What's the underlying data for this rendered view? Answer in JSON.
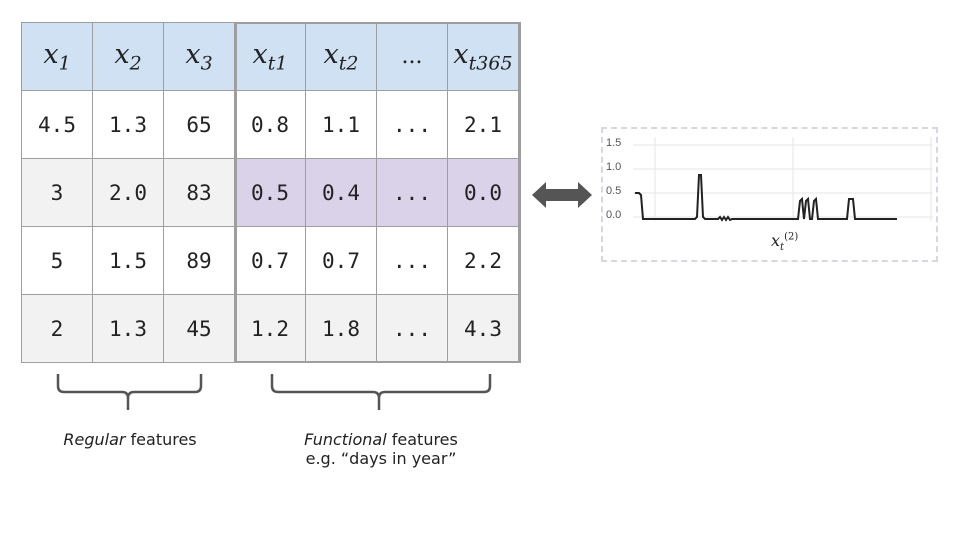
{
  "table": {
    "headers": [
      {
        "base": "x",
        "sub": "1"
      },
      {
        "base": "x",
        "sub": "2"
      },
      {
        "base": "x",
        "sub": "3"
      },
      {
        "base": "x",
        "sub": "t1"
      },
      {
        "base": "x",
        "sub": "t2"
      },
      {
        "base": "...",
        "sub": ""
      },
      {
        "base": "x",
        "sub": "t365"
      }
    ],
    "rows": [
      [
        "4.5",
        "1.3",
        "65",
        "0.8",
        "1.1",
        "...",
        "2.1"
      ],
      [
        "3",
        "2.0",
        "83",
        "0.5",
        "0.4",
        "...",
        "0.0"
      ],
      [
        "5",
        "1.5",
        "89",
        "0.7",
        "0.7",
        "...",
        "2.2"
      ],
      [
        "2",
        "1.3",
        "45",
        "1.2",
        "1.8",
        "...",
        "4.3"
      ]
    ],
    "colors": {
      "header": "#cfe1f3",
      "highlight": "#d9d2e9",
      "alt_row": "#f2f2f2"
    }
  },
  "mini_chart": {
    "ticks": [
      "1.5",
      "1.0",
      "0.5",
      "0.0"
    ],
    "xlabel_base": "x",
    "xlabel_sub": "t",
    "xlabel_sup": "(2)"
  },
  "labels": {
    "regular_em": "Regular",
    "regular_rest": " features",
    "functional_em": "Functional",
    "functional_rest": " features",
    "functional_example": "e.g. “days in year”"
  }
}
